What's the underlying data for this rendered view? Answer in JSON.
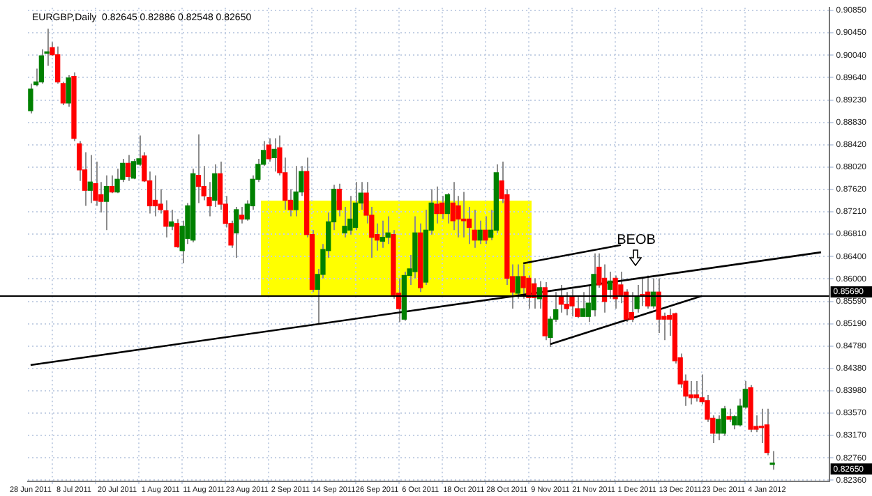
{
  "chart_data": {
    "type": "candlestick",
    "title": "EURGBP,Daily  0.82645 0.82886 0.82548 0.82650",
    "categories": [
      "28 Jun 2011",
      null,
      null,
      null,
      null,
      null,
      null,
      null,
      "8 Jul 2011",
      null,
      null,
      null,
      null,
      null,
      null,
      null,
      "20 Jul 2011",
      null,
      null,
      null,
      null,
      null,
      null,
      null,
      "1 Aug 2011",
      null,
      null,
      null,
      null,
      null,
      null,
      null,
      "11 Aug 2011",
      null,
      null,
      null,
      null,
      null,
      null,
      null,
      "23 Aug 2011",
      null,
      null,
      null,
      null,
      null,
      null,
      null,
      "2 Sep 2011",
      null,
      null,
      null,
      null,
      null,
      null,
      null,
      "14 Sep 2011",
      null,
      null,
      null,
      null,
      null,
      null,
      null,
      "26 Sep 2011",
      null,
      null,
      null,
      null,
      null,
      null,
      null,
      "6 Oct 2011",
      null,
      null,
      null,
      null,
      null,
      null,
      null,
      "18 Oct 2011",
      null,
      null,
      null,
      null,
      null,
      null,
      null,
      "28 Oct 2011",
      null,
      null,
      null,
      null,
      null,
      null,
      null,
      "9 Nov 2011",
      null,
      null,
      null,
      null,
      null,
      null,
      null,
      "21 Nov 2011",
      null,
      null,
      null,
      null,
      null,
      null,
      null,
      "1 Dec 2011",
      null,
      null,
      null,
      null,
      null,
      null,
      null,
      "13 Dec 2011",
      null,
      null,
      null,
      null,
      null,
      null,
      null,
      "23 Dec 2011",
      null,
      null,
      null,
      null,
      null,
      null,
      null,
      "4 Jan 2012",
      null,
      null,
      null,
      null,
      null,
      null,
      null,
      null,
      null,
      null,
      null
    ],
    "ohlc": [
      [
        0.8904,
        0.8953,
        0.8899,
        0.8943
      ],
      [
        0.8951,
        0.898,
        0.8948,
        0.8956
      ],
      [
        0.8956,
        0.9015,
        0.8953,
        0.9003
      ],
      [
        0.9008,
        0.9052,
        0.8985,
        0.901
      ],
      [
        0.9018,
        0.9028,
        0.9003,
        0.9005
      ],
      [
        0.9005,
        0.902,
        0.8953,
        0.8956
      ],
      [
        0.8953,
        0.8956,
        0.8914,
        0.8918
      ],
      [
        0.8918,
        0.8968,
        0.8911,
        0.8963
      ],
      [
        0.8966,
        0.8973,
        0.8849,
        0.8854
      ],
      [
        0.8844,
        0.8849,
        0.8777,
        0.8797
      ],
      [
        0.8797,
        0.8829,
        0.8732,
        0.876
      ],
      [
        0.876,
        0.8824,
        0.8737,
        0.8775
      ],
      [
        0.8772,
        0.8812,
        0.8732,
        0.8742
      ],
      [
        0.8752,
        0.8775,
        0.872,
        0.874
      ],
      [
        0.874,
        0.8787,
        0.8688,
        0.8767
      ],
      [
        0.8767,
        0.8787,
        0.8755,
        0.8757
      ],
      [
        0.8757,
        0.8799,
        0.8755,
        0.878
      ],
      [
        0.878,
        0.8817,
        0.8775,
        0.8809
      ],
      [
        0.8809,
        0.8824,
        0.8777,
        0.8785
      ],
      [
        0.8782,
        0.8817,
        0.878,
        0.8812
      ],
      [
        0.8807,
        0.8859,
        0.8804,
        0.8817
      ],
      [
        0.8822,
        0.8829,
        0.8775,
        0.8777
      ],
      [
        0.8777,
        0.8794,
        0.8718,
        0.8732
      ],
      [
        0.8742,
        0.8787,
        0.8713,
        0.8732
      ],
      [
        0.8735,
        0.8762,
        0.8718,
        0.8725
      ],
      [
        0.8723,
        0.8742,
        0.8675,
        0.8695
      ],
      [
        0.8695,
        0.8725,
        0.8688,
        0.8703
      ],
      [
        0.87,
        0.8708,
        0.8656,
        0.8658
      ],
      [
        0.8651,
        0.8705,
        0.8628,
        0.8695
      ],
      [
        0.8673,
        0.8737,
        0.8663,
        0.8732
      ],
      [
        0.867,
        0.8799,
        0.8666,
        0.879
      ],
      [
        0.8787,
        0.8861,
        0.8737,
        0.8767
      ],
      [
        0.8767,
        0.8804,
        0.8742,
        0.875
      ],
      [
        0.8747,
        0.8775,
        0.8713,
        0.8732
      ],
      [
        0.8742,
        0.8807,
        0.873,
        0.879
      ],
      [
        0.879,
        0.8812,
        0.8725,
        0.8735
      ],
      [
        0.8735,
        0.875,
        0.8693,
        0.87
      ],
      [
        0.87,
        0.8705,
        0.8656,
        0.8661
      ],
      [
        0.8683,
        0.873,
        0.8638,
        0.8725
      ],
      [
        0.8715,
        0.873,
        0.87,
        0.8708
      ],
      [
        0.8708,
        0.8742,
        0.8705,
        0.8735
      ],
      [
        0.8732,
        0.8787,
        0.8725,
        0.878
      ],
      [
        0.878,
        0.8817,
        0.8775,
        0.8807
      ],
      [
        0.8807,
        0.8849,
        0.8804,
        0.8832
      ],
      [
        0.8842,
        0.8854,
        0.8812,
        0.8817
      ],
      [
        0.8819,
        0.8854,
        0.8794,
        0.8834
      ],
      [
        0.8837,
        0.8859,
        0.8787,
        0.8792
      ],
      [
        0.8792,
        0.8819,
        0.8725,
        0.8742
      ],
      [
        0.8742,
        0.8762,
        0.8713,
        0.8725
      ],
      [
        0.8725,
        0.8804,
        0.8713,
        0.8757
      ],
      [
        0.8757,
        0.8804,
        0.875,
        0.8794
      ],
      [
        0.8794,
        0.8819,
        0.8675,
        0.868
      ],
      [
        0.868,
        0.8688,
        0.8576,
        0.8581
      ],
      [
        0.8581,
        0.8618,
        0.8519,
        0.8608
      ],
      [
        0.8608,
        0.8663,
        0.8601,
        0.8653
      ],
      [
        0.8651,
        0.872,
        0.8638,
        0.8703
      ],
      [
        0.8703,
        0.877,
        0.8688,
        0.8762
      ],
      [
        0.8762,
        0.8772,
        0.8713,
        0.8725
      ],
      [
        0.8683,
        0.873,
        0.8675,
        0.8695
      ],
      [
        0.8688,
        0.875,
        0.868,
        0.8708
      ],
      [
        0.8693,
        0.8775,
        0.8688,
        0.8737
      ],
      [
        0.8737,
        0.8775,
        0.8725,
        0.8755
      ],
      [
        0.8755,
        0.8775,
        0.87,
        0.8715
      ],
      [
        0.8715,
        0.873,
        0.8638,
        0.8675
      ],
      [
        0.868,
        0.87,
        0.8651,
        0.867
      ],
      [
        0.8668,
        0.8705,
        0.8656,
        0.8675
      ],
      [
        0.8675,
        0.8713,
        0.8663,
        0.8683
      ],
      [
        0.868,
        0.8688,
        0.8564,
        0.8571
      ],
      [
        0.8574,
        0.8601,
        0.8522,
        0.8546
      ],
      [
        0.8527,
        0.8613,
        0.8524,
        0.8606
      ],
      [
        0.8606,
        0.8643,
        0.8589,
        0.8618
      ],
      [
        0.8613,
        0.8713,
        0.8601,
        0.8683
      ],
      [
        0.8683,
        0.87,
        0.8576,
        0.8584
      ],
      [
        0.8594,
        0.8725,
        0.8589,
        0.8688
      ],
      [
        0.8688,
        0.8762,
        0.868,
        0.8737
      ],
      [
        0.8735,
        0.8767,
        0.87,
        0.8718
      ],
      [
        0.8737,
        0.875,
        0.8708,
        0.8718
      ],
      [
        0.8718,
        0.8755,
        0.87,
        0.8752
      ],
      [
        0.8737,
        0.8775,
        0.8688,
        0.8705
      ],
      [
        0.8732,
        0.875,
        0.8675,
        0.8708
      ],
      [
        0.8708,
        0.8757,
        0.8675,
        0.8705
      ],
      [
        0.8708,
        0.873,
        0.8663,
        0.8693
      ],
      [
        0.8688,
        0.8725,
        0.8656,
        0.867
      ],
      [
        0.867,
        0.8705,
        0.8663,
        0.8688
      ],
      [
        0.8688,
        0.8713,
        0.8663,
        0.867
      ],
      [
        0.8675,
        0.8725,
        0.867,
        0.8688
      ],
      [
        0.8688,
        0.8807,
        0.8683,
        0.8792
      ],
      [
        0.8777,
        0.8812,
        0.8737,
        0.8745
      ],
      [
        0.8752,
        0.8762,
        0.8589,
        0.8601
      ],
      [
        0.8604,
        0.8626,
        0.8546,
        0.8576
      ],
      [
        0.8574,
        0.8626,
        0.8564,
        0.8604
      ],
      [
        0.8604,
        0.8626,
        0.8564,
        0.8584
      ],
      [
        0.8601,
        0.8606,
        0.8546,
        0.8566
      ],
      [
        0.8591,
        0.8601,
        0.8546,
        0.8566
      ],
      [
        0.8564,
        0.8596,
        0.8546,
        0.8584
      ],
      [
        0.8584,
        0.8594,
        0.8489,
        0.8497
      ],
      [
        0.8494,
        0.8532,
        0.8477,
        0.8527
      ],
      [
        0.8527,
        0.8576,
        0.8522,
        0.8544
      ],
      [
        0.8569,
        0.8589,
        0.8539,
        0.8554
      ],
      [
        0.8554,
        0.8576,
        0.8534,
        0.8546
      ],
      [
        0.8569,
        0.8581,
        0.8532,
        0.8551
      ],
      [
        0.8546,
        0.8569,
        0.8529,
        0.8532
      ],
      [
        0.8532,
        0.8576,
        0.8532,
        0.8546
      ],
      [
        0.8532,
        0.8589,
        0.8522,
        0.8556
      ],
      [
        0.8544,
        0.8646,
        0.8532,
        0.8608
      ],
      [
        0.8621,
        0.8646,
        0.8584,
        0.8589
      ],
      [
        0.8601,
        0.8626,
        0.8539,
        0.8559
      ],
      [
        0.8581,
        0.8613,
        0.8564,
        0.8596
      ],
      [
        0.8601,
        0.8606,
        0.8546,
        0.8564
      ],
      [
        0.8589,
        0.8613,
        0.8556,
        0.8571
      ],
      [
        0.8576,
        0.8581,
        0.8522,
        0.8527
      ],
      [
        0.8539,
        0.8576,
        0.8522,
        0.8527
      ],
      [
        0.8546,
        0.8589,
        0.8539,
        0.8569
      ],
      [
        0.8571,
        0.8601,
        0.8551,
        0.8569
      ],
      [
        0.8576,
        0.8606,
        0.8546,
        0.8551
      ],
      [
        0.8551,
        0.8601,
        0.8546,
        0.8576
      ],
      [
        0.8576,
        0.8601,
        0.8502,
        0.8527
      ],
      [
        0.8532,
        0.8539,
        0.8489,
        0.8527
      ],
      [
        0.8534,
        0.8546,
        0.8497,
        0.8527
      ],
      [
        0.8537,
        0.8539,
        0.8447,
        0.8452
      ],
      [
        0.8457,
        0.8465,
        0.8403,
        0.841
      ],
      [
        0.8415,
        0.8427,
        0.837,
        0.8388
      ],
      [
        0.839,
        0.8415,
        0.8373,
        0.8385
      ],
      [
        0.839,
        0.8415,
        0.8378,
        0.8385
      ],
      [
        0.8385,
        0.8427,
        0.8373,
        0.8378
      ],
      [
        0.838,
        0.839,
        0.8341,
        0.8346
      ],
      [
        0.8348,
        0.8353,
        0.8303,
        0.8321
      ],
      [
        0.8321,
        0.8353,
        0.8308,
        0.8346
      ],
      [
        0.8321,
        0.837,
        0.8316,
        0.8365
      ],
      [
        0.8351,
        0.8365,
        0.8341,
        0.8346
      ],
      [
        0.8336,
        0.8353,
        0.8328,
        0.8351
      ],
      [
        0.8336,
        0.8383,
        0.8333,
        0.837
      ],
      [
        0.8368,
        0.8415,
        0.8365,
        0.84
      ],
      [
        0.8403,
        0.8408,
        0.8323,
        0.8328
      ],
      [
        0.8333,
        0.8353,
        0.8323,
        0.8328
      ],
      [
        0.8333,
        0.8365,
        0.8303,
        0.8331
      ],
      [
        0.8336,
        0.8365,
        0.8281,
        0.8286
      ],
      [
        0.82645,
        0.82886,
        0.82548,
        0.8265
      ],
      null,
      null,
      null,
      null,
      null,
      null,
      null,
      null,
      null,
      null
    ],
    "series": [
      {
        "type": "line",
        "color": "#000000",
        "values": [
          0.8444,
          null,
          null,
          null,
          null,
          null,
          null,
          null,
          null,
          null,
          null,
          null,
          null,
          null,
          null,
          null,
          null,
          null,
          null,
          null,
          null,
          null,
          null,
          null,
          null,
          null,
          null,
          null,
          null,
          null,
          null,
          null,
          null,
          null,
          null,
          null,
          null,
          null,
          null,
          null,
          null,
          null,
          null,
          null,
          null,
          null,
          null,
          null,
          null,
          null,
          null,
          null,
          null,
          null,
          null,
          null,
          null,
          null,
          null,
          null,
          null,
          null,
          null,
          null,
          null,
          null,
          null,
          null,
          null,
          null,
          null,
          null,
          null,
          null,
          null,
          null,
          null,
          null,
          null,
          null,
          null,
          null,
          null,
          null,
          null,
          null,
          null,
          null,
          null,
          null,
          null,
          null,
          null,
          null,
          null,
          null,
          null,
          null,
          null,
          null,
          null,
          null,
          null,
          null,
          null,
          null,
          null,
          null,
          null,
          null,
          null,
          null,
          null,
          null,
          null,
          null,
          null,
          null,
          null,
          null,
          null,
          null,
          null,
          null,
          null,
          null,
          null,
          null,
          null,
          null,
          null,
          null,
          null,
          null,
          null,
          null,
          null,
          null,
          null,
          null,
          null,
          null,
          null,
          null,
          null,
          null,
          0.8648,
          null
        ]
      },
      {
        "type": "line",
        "color": "#000000",
        "values": [
          null,
          null,
          null,
          null,
          null,
          null,
          null,
          null,
          null,
          null,
          null,
          null,
          null,
          null,
          null,
          null,
          null,
          null,
          null,
          null,
          null,
          null,
          null,
          null,
          null,
          null,
          null,
          null,
          null,
          null,
          null,
          null,
          null,
          null,
          null,
          null,
          null,
          null,
          null,
          null,
          null,
          null,
          null,
          null,
          null,
          null,
          null,
          null,
          null,
          null,
          null,
          null,
          null,
          null,
          null,
          null,
          null,
          null,
          null,
          null,
          null,
          null,
          null,
          null,
          null,
          null,
          null,
          null,
          null,
          null,
          null,
          null,
          null,
          null,
          null,
          null,
          null,
          null,
          null,
          null,
          null,
          null,
          null,
          null,
          null,
          null,
          null,
          null,
          null,
          null,
          null,
          0.8628,
          null,
          null,
          null,
          null,
          null,
          null,
          null,
          null,
          null,
          null,
          null,
          null,
          null,
          null,
          null,
          null,
          null,
          0.8661,
          null,
          null,
          null,
          null,
          null,
          null,
          null,
          null,
          null,
          null,
          null,
          null,
          null,
          null,
          null,
          null,
          null,
          null,
          null,
          null,
          null,
          null,
          null,
          null,
          null,
          null,
          null,
          null,
          null,
          null,
          null,
          null,
          null,
          null,
          null,
          null,
          null,
          null
        ]
      },
      {
        "type": "line",
        "color": "#000000",
        "values": [
          null,
          null,
          null,
          null,
          null,
          null,
          null,
          null,
          null,
          null,
          null,
          null,
          null,
          null,
          null,
          null,
          null,
          null,
          null,
          null,
          null,
          null,
          null,
          null,
          null,
          null,
          null,
          null,
          null,
          null,
          null,
          null,
          null,
          null,
          null,
          null,
          null,
          null,
          null,
          null,
          null,
          null,
          null,
          null,
          null,
          null,
          null,
          null,
          null,
          null,
          null,
          null,
          null,
          null,
          null,
          null,
          null,
          null,
          null,
          null,
          null,
          null,
          null,
          null,
          null,
          null,
          null,
          null,
          null,
          null,
          null,
          null,
          null,
          null,
          null,
          null,
          null,
          null,
          null,
          null,
          null,
          null,
          null,
          null,
          null,
          null,
          null,
          null,
          null,
          null,
          null,
          null,
          null,
          null,
          null,
          null,
          0.8482,
          null,
          null,
          null,
          null,
          null,
          null,
          null,
          null,
          null,
          null,
          null,
          null,
          null,
          null,
          null,
          null,
          null,
          null,
          null,
          null,
          null,
          null,
          null,
          null,
          null,
          null,
          null,
          0.8569,
          null,
          null,
          null,
          null,
          null,
          null,
          null,
          null,
          null,
          null,
          null,
          null,
          null,
          null,
          null,
          null,
          null,
          null,
          null,
          null,
          null,
          null,
          null
        ]
      }
    ],
    "ylim": [
      0.8234,
      0.909
    ],
    "yticks": [
      {
        "value": 0.8236,
        "label": "0.82360"
      },
      {
        "value": 0.8276,
        "label": "0.82760"
      },
      {
        "value": 0.8317,
        "label": "0.83170"
      },
      {
        "value": 0.8357,
        "label": "0.83570"
      },
      {
        "value": 0.8398,
        "label": "0.83980"
      },
      {
        "value": 0.8438,
        "label": "0.84380"
      },
      {
        "value": 0.8478,
        "label": "0.84780"
      },
      {
        "value": 0.8519,
        "label": "0.85190"
      },
      {
        "value": 0.8559,
        "label": "0.85590"
      },
      {
        "value": 0.86,
        "label": "0.86000"
      },
      {
        "value": 0.864,
        "label": "0.86400"
      },
      {
        "value": 0.8681,
        "label": "0.86810"
      },
      {
        "value": 0.8721,
        "label": "0.87210"
      },
      {
        "value": 0.8762,
        "label": "0.87620"
      },
      {
        "value": 0.8802,
        "label": "0.88020"
      },
      {
        "value": 0.8842,
        "label": "0.88420"
      },
      {
        "value": 0.8883,
        "label": "0.88830"
      },
      {
        "value": 0.8923,
        "label": "0.89230"
      },
      {
        "value": 0.8964,
        "label": "0.89640"
      },
      {
        "value": 0.9004,
        "label": "0.90040"
      },
      {
        "value": 0.9045,
        "label": "0.90450"
      },
      {
        "value": 0.9085,
        "label": "0.90850"
      }
    ],
    "ref_lines": [
      {
        "axis": "y",
        "value": 0.8569,
        "label": "0.85690",
        "color": "#000000"
      }
    ],
    "annotations": [
      "BEOB",
      "0.82650"
    ],
    "grid": true,
    "legend": false
  }
}
